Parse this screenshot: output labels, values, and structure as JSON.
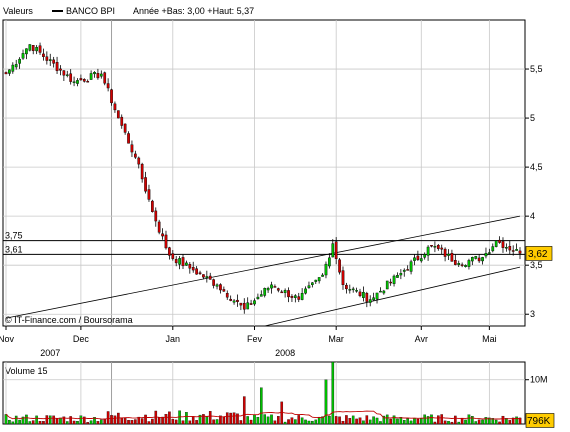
{
  "header": {
    "valeurs_label": "Valeurs",
    "legend_name": "BANCO BPI",
    "range_text": "Année +Bas: 3,00 +Haut: 5,37"
  },
  "credit": "© IT-Finance.com / Boursorama",
  "colors": {
    "up": "#00c000",
    "down": "#d00000",
    "grid": "#c8c8c8",
    "frame": "#000000",
    "last_price_bg": "#ffcc00",
    "volume_avg": "#c00000",
    "channel": "#000000",
    "background": "#ffffff"
  },
  "chart_data": [
    {
      "type": "candlestick",
      "title": "BANCO BPI",
      "y_ticks": [
        "3",
        "3,5",
        "4",
        "4,5",
        "5",
        "5,5"
      ],
      "y_tick_values": [
        3,
        3.5,
        4,
        4.5,
        5,
        5.5
      ],
      "ylim": [
        2.88,
        6.0
      ],
      "x_month_labels": [
        "Nov",
        "Dec",
        "Jan",
        "Fev",
        "Mar",
        "Avr",
        "Mai"
      ],
      "x_month_index": [
        0,
        22,
        49,
        73,
        97,
        122,
        142
      ],
      "x_year_labels": [
        "2007",
        "2008"
      ],
      "x_year_index": [
        13,
        82
      ],
      "n_sessions": 152,
      "levels": [
        {
          "label": "3,75",
          "value": 3.75
        },
        {
          "label": "3,61",
          "value": 3.61
        }
      ],
      "last_price": {
        "label": "3,62",
        "value": 3.62
      },
      "channel_lines": [
        {
          "from": [
            0,
            2.96
          ],
          "to": [
            151,
            4.0
          ]
        },
        {
          "from": [
            76,
            2.88
          ],
          "to": [
            151,
            3.48
          ]
        }
      ],
      "key_points": [
        {
          "i": 0,
          "close": 5.45
        },
        {
          "i": 7,
          "close": 5.75
        },
        {
          "i": 20,
          "close": 5.37
        },
        {
          "i": 28,
          "close": 5.45
        },
        {
          "i": 33,
          "close": 5.0
        },
        {
          "i": 38,
          "close": 4.6
        },
        {
          "i": 44,
          "close": 3.95
        },
        {
          "i": 48,
          "close": 3.6
        },
        {
          "i": 55,
          "close": 3.45
        },
        {
          "i": 62,
          "close": 3.3
        },
        {
          "i": 70,
          "close": 3.05
        },
        {
          "i": 78,
          "close": 3.3
        },
        {
          "i": 86,
          "close": 3.15
        },
        {
          "i": 93,
          "close": 3.4
        },
        {
          "i": 96,
          "close": 3.72
        },
        {
          "i": 99,
          "close": 3.3
        },
        {
          "i": 107,
          "close": 3.15
        },
        {
          "i": 117,
          "close": 3.45
        },
        {
          "i": 125,
          "close": 3.7
        },
        {
          "i": 133,
          "close": 3.52
        },
        {
          "i": 140,
          "close": 3.58
        },
        {
          "i": 144,
          "close": 3.75
        },
        {
          "i": 151,
          "close": 3.62
        }
      ]
    },
    {
      "type": "bar",
      "title": "Volume 15",
      "y_ticks": [
        "10M"
      ],
      "y_tick_values": [
        10000000
      ],
      "ylim": [
        0,
        14000000
      ],
      "last_volume": {
        "label": "796K",
        "value": 796000
      },
      "volume_peaks": [
        {
          "i": 96,
          "value": 14500000
        },
        {
          "i": 94,
          "value": 10000000
        },
        {
          "i": 75,
          "value": 8200000
        },
        {
          "i": 70,
          "value": 6200000
        },
        {
          "i": 81,
          "value": 5000000
        }
      ]
    }
  ]
}
